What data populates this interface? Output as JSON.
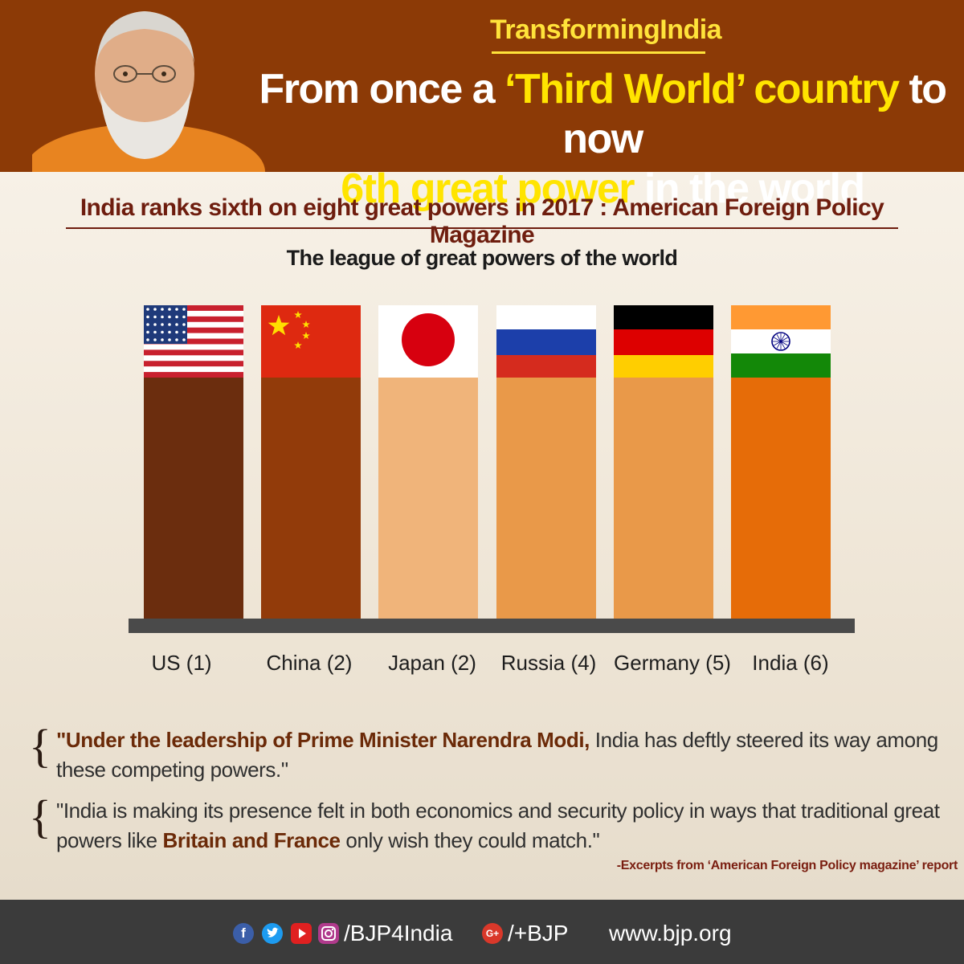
{
  "header": {
    "hashtag": "TransformingIndia",
    "headline_line1_a": "From once a ",
    "headline_line1_b": "‘Third World’ country",
    "headline_line1_c": " to now",
    "headline_line2_a": "6th great power",
    "headline_line2_b": " in the world"
  },
  "subtitle": "India ranks sixth on eight great powers in 2017 : American Foreign Policy Magazine",
  "chart_data": {
    "type": "bar",
    "title": "The league of great powers of the world",
    "categories": [
      "US (1)",
      "China (2)",
      "Japan (2)",
      "Russia (4)",
      "Germany (5)",
      "India (6)"
    ],
    "flags": [
      "us-flag",
      "china-flag",
      "japan-flag",
      "russia-flag",
      "germany-flag",
      "india-flag"
    ],
    "bar_colors": [
      "#6b2d0e",
      "#923b0a",
      "#f0b47a",
      "#e99949",
      "#e99949",
      "#e66c08"
    ],
    "xlabel": "",
    "ylabel": ""
  },
  "quotes": [
    {
      "emph": "\"Under the leadership of Prime Minister Narendra Modi,",
      "rest": " India has deftly steered its way among these competing powers.\""
    },
    {
      "a": "\"India is making its presence felt in both economics and security policy in ways that traditional great powers like ",
      "emph": "Britain and France",
      "b": " only wish they could match.\""
    }
  ],
  "source": "-Excerpts from  ‘American Foreign Policy magazine’ report",
  "footer": {
    "icons": [
      "facebook-icon",
      "twitter-icon",
      "youtube-icon",
      "instagram-icon"
    ],
    "handle": "/BJP4India",
    "gplus_icon": "google-plus-icon",
    "gplus": "/+BJP",
    "website": "www.bjp.org"
  }
}
